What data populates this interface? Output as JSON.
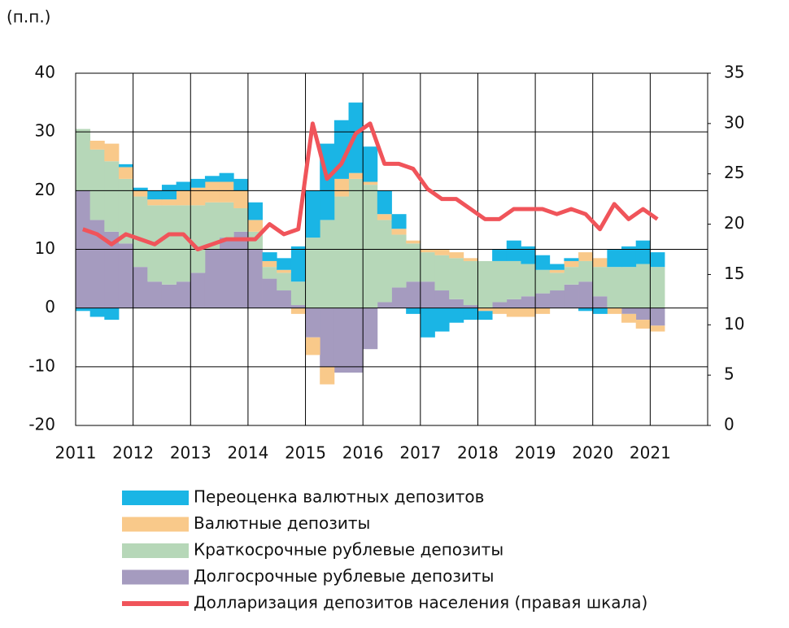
{
  "chart_data": {
    "type": "stacked-bar-line",
    "subtitle": "(п.п.)",
    "x": [
      2011,
      2011.25,
      2011.5,
      2011.75,
      2012,
      2012.25,
      2012.5,
      2012.75,
      2013,
      2013.25,
      2013.5,
      2013.75,
      2014,
      2014.25,
      2014.5,
      2014.75,
      2015,
      2015.25,
      2015.5,
      2015.75,
      2016,
      2016.25,
      2016.5,
      2016.75,
      2017,
      2017.25,
      2017.5,
      2017.75,
      2018,
      2018.25,
      2018.5,
      2018.75,
      2019,
      2019.25,
      2019.5,
      2019.75,
      2020,
      2020.25,
      2020.5,
      2020.75,
      2021
    ],
    "xlim": [
      2011,
      2022
    ],
    "xticks": [
      2011,
      2012,
      2013,
      2014,
      2015,
      2016,
      2017,
      2018,
      2019,
      2020,
      2021
    ],
    "ylim": [
      -20,
      40
    ],
    "yticks": [
      -20,
      -10,
      0,
      10,
      20,
      30,
      40
    ],
    "y2lim": [
      0,
      35
    ],
    "y2ticks": [
      0,
      5,
      10,
      15,
      20,
      25,
      30,
      35
    ],
    "grid": true,
    "series": [
      {
        "name": "Долгосрочные рублевые депозиты",
        "color": "#a59bbf",
        "values": [
          20,
          15,
          13,
          11,
          7,
          4.5,
          4,
          4.5,
          6,
          10,
          12,
          13,
          10,
          5,
          3,
          0.5,
          -5,
          -10,
          -11,
          -11,
          -7,
          1,
          3.5,
          4.5,
          4.5,
          3,
          1.5,
          0.5,
          0,
          1,
          1.5,
          2,
          2.5,
          3,
          4,
          4.5,
          2,
          0,
          -1,
          -2,
          -3
        ]
      },
      {
        "name": "Краткосрочные рублевые депозиты",
        "color": "#b6d7b8",
        "values": [
          10.5,
          12,
          12,
          11,
          12,
          13,
          13.5,
          13,
          11.5,
          8,
          6,
          4,
          3,
          2,
          3,
          4,
          12,
          15,
          19,
          22,
          21,
          14,
          9,
          6.5,
          5,
          6,
          7,
          7.5,
          8,
          7,
          6.5,
          5.5,
          4,
          3,
          3,
          3.5,
          5,
          7,
          7,
          7.5,
          7
        ]
      },
      {
        "name": "Валютные депозиты",
        "color": "#f9c98a",
        "values": [
          0,
          1.5,
          3,
          2,
          1,
          1,
          1,
          2.5,
          3,
          3.5,
          3.5,
          3,
          2,
          1,
          0.5,
          -1,
          -3,
          -3,
          3,
          1,
          0.5,
          1,
          1,
          0.5,
          0.5,
          1,
          1,
          0.5,
          -0.5,
          -1,
          -1.5,
          -1.5,
          -1,
          0.5,
          1,
          1.5,
          1.5,
          -1,
          -1.5,
          -1.5,
          -1
        ]
      },
      {
        "name": "Переоценка валютных депозитов",
        "color": "#1ab5e5",
        "values": [
          -0.5,
          -1.5,
          -2,
          0.5,
          0.5,
          1.5,
          2.5,
          1.5,
          1.5,
          1,
          1.5,
          2,
          3,
          1.5,
          2,
          6,
          8,
          13,
          10,
          12,
          6,
          4,
          2.5,
          -1,
          -5,
          -4,
          -2.5,
          -2,
          -1.5,
          2,
          3.5,
          3,
          2.5,
          1,
          0.5,
          -0.5,
          -1,
          3,
          3.5,
          4,
          2.5
        ]
      },
      {
        "name": "Долларизация депозитов населения (правая шкала)",
        "color": "#f0545a",
        "axis": "y2",
        "values": [
          19.5,
          19,
          18,
          19,
          18.5,
          18,
          19,
          19,
          17.5,
          18,
          18.5,
          18.5,
          18.5,
          20,
          19,
          19.5,
          30,
          24.5,
          26,
          29,
          30,
          26,
          26,
          25.5,
          23.5,
          22.5,
          22.5,
          21.5,
          20.5,
          20.5,
          21.5,
          21.5,
          21.5,
          21,
          21.5,
          21,
          19.5,
          22,
          20.5,
          21.5,
          20.5
        ]
      }
    ]
  }
}
